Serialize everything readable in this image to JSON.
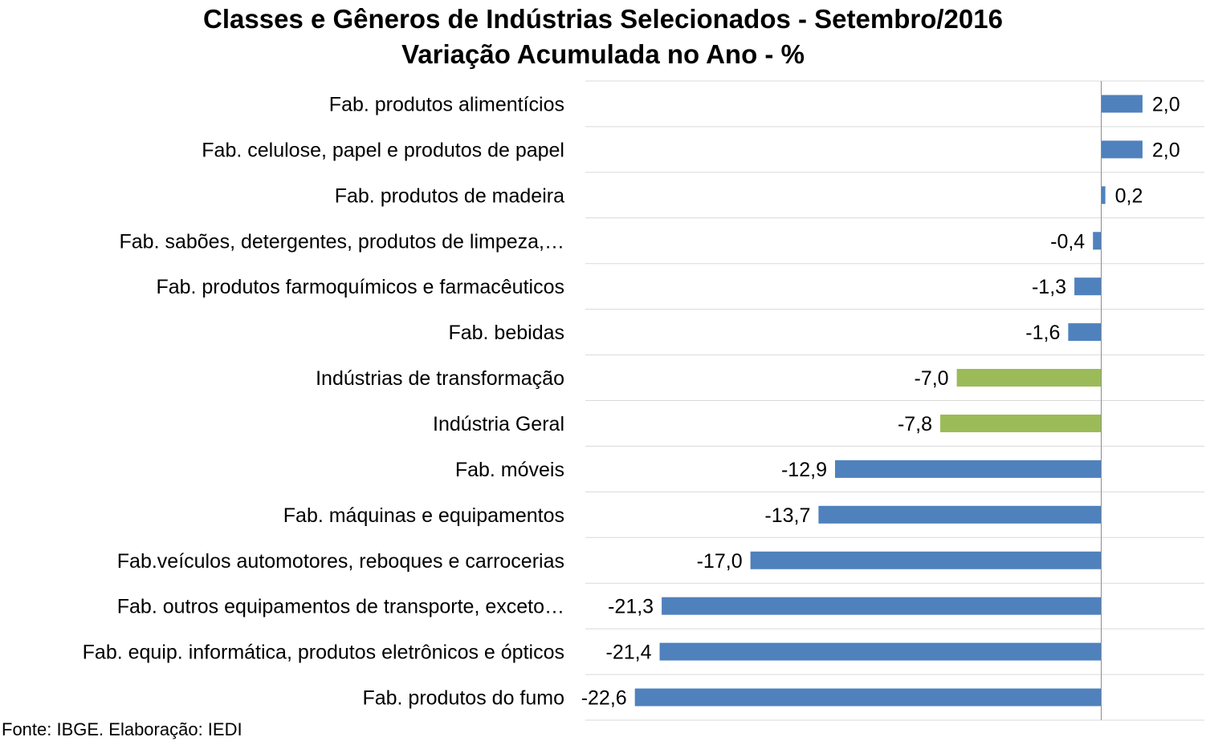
{
  "chart_data": {
    "type": "bar",
    "orientation": "horizontal",
    "title": "Classes e Gêneros de Indústrias Selecionados - Setembro/2016",
    "subtitle": "Variação Acumulada no Ano - %",
    "categories": [
      "Fab. produtos alimentícios",
      "Fab. celulose, papel e produtos de papel",
      "Fab. produtos de madeira",
      "Fab. sabões, detergentes, produtos de limpeza,…",
      "Fab. produtos farmoquímicos e farmacêuticos",
      "Fab. bebidas",
      "Indústrias de transformação",
      "Indústria Geral",
      "Fab. móveis",
      "Fab. máquinas e equipamentos",
      "Fab.veículos automotores, reboques e carrocerias",
      "Fab. outros equipamentos de transporte, exceto…",
      "Fab. equip. informática, produtos eletrônicos e ópticos",
      "Fab. produtos do fumo"
    ],
    "values": [
      2.0,
      2.0,
      0.2,
      -0.4,
      -1.3,
      -1.6,
      -7.0,
      -7.8,
      -12.9,
      -13.7,
      -17.0,
      -21.3,
      -21.4,
      -22.6
    ],
    "value_labels": [
      "2,0",
      "2,0",
      "0,2",
      "-0,4",
      "-1,3",
      "-1,6",
      "-7,0",
      "-7,8",
      "-12,9",
      "-13,7",
      "-17,0",
      "-21,3",
      "-21,4",
      "-22,6"
    ],
    "bar_colors": [
      "#4F81BD",
      "#4F81BD",
      "#4F81BD",
      "#4F81BD",
      "#4F81BD",
      "#4F81BD",
      "#9BBB59",
      "#9BBB59",
      "#4F81BD",
      "#4F81BD",
      "#4F81BD",
      "#4F81BD",
      "#4F81BD",
      "#4F81BD"
    ],
    "xlim": [
      -25,
      5
    ],
    "gridlines": "horizontal",
    "legend": "none",
    "source": "Fonte: IBGE. Elaboração: IEDI"
  }
}
